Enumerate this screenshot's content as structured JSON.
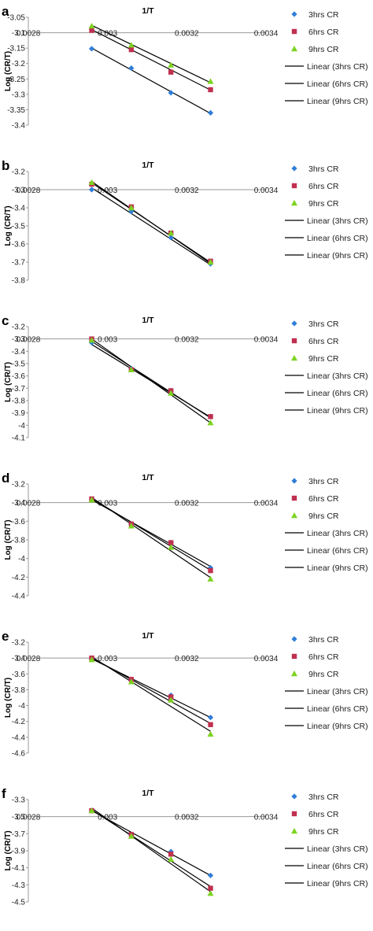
{
  "chart_data": [
    {
      "type": "scatter",
      "panel_label": "a",
      "title": "1/T",
      "ylabel": "Log (CR/T)",
      "xlim": [
        0.0028,
        0.0034
      ],
      "ylim": [
        -3.4,
        -3.05
      ],
      "x_ticks": [
        "0.0028",
        "0.003",
        "0.0032",
        "0.0034"
      ],
      "y_ticks": [
        "-3.05",
        "-3.1",
        "-3.15",
        "-3.2",
        "-3.25",
        "-3.3",
        "-3.35",
        "-3.4"
      ],
      "x": [
        0.00296,
        0.00306,
        0.00316,
        0.00326
      ],
      "series": [
        {
          "name": "3hrs CR",
          "values": [
            -3.152,
            -3.215,
            -3.295,
            -3.36
          ],
          "fit": [
            -3.15,
            -3.362
          ]
        },
        {
          "name": "6hrs CR",
          "values": [
            -3.092,
            -3.155,
            -3.228,
            -3.285
          ],
          "fit": [
            -3.09,
            -3.286
          ]
        },
        {
          "name": "9hrs CR",
          "values": [
            -3.078,
            -3.14,
            -3.205,
            -3.258
          ],
          "fit": [
            -3.076,
            -3.262
          ]
        }
      ],
      "legend_fit": [
        "Linear (3hrs CR)",
        "Linear (6hrs CR)",
        "Linear (9hrs CR)"
      ]
    },
    {
      "type": "scatter",
      "panel_label": "b",
      "title": "1/T",
      "ylabel": "Log (CR/T)",
      "xlim": [
        0.0028,
        0.0034
      ],
      "ylim": [
        -3.8,
        -3.2
      ],
      "x_ticks": [
        "0.0028",
        "0.003",
        "0.0032",
        "0.0034"
      ],
      "y_ticks": [
        "-3.2",
        "-3.3",
        "-3.4",
        "-3.5",
        "-3.6",
        "-3.7",
        "-3.8"
      ],
      "x": [
        0.00296,
        0.00306,
        0.00316,
        0.00326
      ],
      "series": [
        {
          "name": "3hrs CR",
          "values": [
            -3.3,
            -3.42,
            -3.565,
            -3.71
          ],
          "fit": [
            -3.29,
            -3.715
          ]
        },
        {
          "name": "6hrs CR",
          "values": [
            -3.27,
            -3.395,
            -3.54,
            -3.695
          ],
          "fit": [
            -3.262,
            -3.702
          ]
        },
        {
          "name": "9hrs CR",
          "values": [
            -3.26,
            -3.4,
            -3.54,
            -3.7
          ],
          "fit": [
            -3.255,
            -3.708
          ]
        }
      ],
      "legend_fit": [
        "Linear (3hrs CR)",
        "Linear (6hrs CR)",
        "Linear (9hrs CR)"
      ]
    },
    {
      "type": "scatter",
      "panel_label": "c",
      "title": "1/T",
      "ylabel": "Log (CR/T)",
      "xlim": [
        0.0028,
        0.0034
      ],
      "ylim": [
        -4.1,
        -3.2
      ],
      "x_ticks": [
        "0.0028",
        "0.003",
        "0.0032",
        "0.0034"
      ],
      "y_ticks": [
        "-3.2",
        "-3.3",
        "-3.4",
        "-3.5",
        "-3.6",
        "-3.7",
        "-3.8",
        "-3.9",
        "-4",
        "-4.1"
      ],
      "x": [
        0.00296,
        0.00306,
        0.00316,
        0.00326
      ],
      "series": [
        {
          "name": "3hrs CR",
          "values": [
            -3.33,
            -3.54,
            -3.72,
            -3.93
          ],
          "fit": [
            -3.345,
            -3.935
          ]
        },
        {
          "name": "6hrs CR",
          "values": [
            -3.3,
            -3.55,
            -3.72,
            -3.93
          ],
          "fit": [
            -3.32,
            -3.94
          ]
        },
        {
          "name": "9hrs CR",
          "values": [
            -3.31,
            -3.55,
            -3.74,
            -3.98
          ],
          "fit": [
            -3.3,
            -3.98
          ]
        }
      ],
      "legend_fit": [
        "Linear (3hrs CR)",
        "Linear (6hrs CR)",
        "Linear (9hrs CR)"
      ]
    },
    {
      "type": "scatter",
      "panel_label": "d",
      "title": "1/T",
      "ylabel": "Log (CR/T)",
      "xlim": [
        0.0028,
        0.0034
      ],
      "ylim": [
        -4.4,
        -3.2
      ],
      "x_ticks": [
        "0.0028",
        "0.003",
        "0.0032",
        "0.0034"
      ],
      "y_ticks": [
        "-3.2",
        "-3.4",
        "-3.6",
        "-3.8",
        "-4",
        "-4.2",
        "-4.4"
      ],
      "x": [
        0.00296,
        0.00306,
        0.00316,
        0.00326
      ],
      "series": [
        {
          "name": "3hrs CR",
          "values": [
            -3.37,
            -3.63,
            -3.83,
            -4.1
          ],
          "fit": [
            -3.37,
            -4.085
          ]
        },
        {
          "name": "6hrs CR",
          "values": [
            -3.36,
            -3.63,
            -3.83,
            -4.13
          ],
          "fit": [
            -3.355,
            -4.125
          ]
        },
        {
          "name": "9hrs CR",
          "values": [
            -3.37,
            -3.65,
            -3.88,
            -4.22
          ],
          "fit": [
            -3.345,
            -4.205
          ]
        }
      ],
      "legend_fit": [
        "Linear (3hrs CR)",
        "Linear (6hrs CR)",
        "Linear (9hrs CR)"
      ]
    },
    {
      "type": "scatter",
      "panel_label": "e",
      "title": "1/T",
      "ylabel": "Log (CR/T)",
      "xlim": [
        0.0028,
        0.0034
      ],
      "ylim": [
        -4.6,
        -3.2
      ],
      "x_ticks": [
        "0.0028",
        "0.003",
        "0.0032",
        "0.0034"
      ],
      "y_ticks": [
        "-3.2",
        "-3.4",
        "-3.6",
        "-3.8",
        "-4",
        "-4.2",
        "-4.4",
        "-4.6"
      ],
      "x": [
        0.00296,
        0.00306,
        0.00316,
        0.00326
      ],
      "series": [
        {
          "name": "3hrs CR",
          "values": [
            -3.41,
            -3.67,
            -3.87,
            -4.15
          ],
          "fit": [
            -3.41,
            -4.15
          ]
        },
        {
          "name": "6hrs CR",
          "values": [
            -3.4,
            -3.67,
            -3.89,
            -4.24
          ],
          "fit": [
            -3.395,
            -4.225
          ]
        },
        {
          "name": "9hrs CR",
          "values": [
            -3.42,
            -3.7,
            -3.93,
            -4.36
          ],
          "fit": [
            -3.385,
            -4.325
          ]
        }
      ],
      "legend_fit": [
        "Linear (3hrs CR)",
        "Linear (6hrs CR)",
        "Linear (9hrs CR)"
      ]
    },
    {
      "type": "scatter",
      "panel_label": "f",
      "title": "1/T",
      "ylabel": "Log (CR/T)",
      "xlim": [
        0.0028,
        0.0034
      ],
      "ylim": [
        -4.5,
        -3.3
      ],
      "x_ticks": [
        "0.0028",
        "0.003",
        "0.0032",
        "0.0034"
      ],
      "y_ticks": [
        "-3.3",
        "-3.5",
        "-3.7",
        "-3.9",
        "-4.1",
        "-4.3",
        "-4.5"
      ],
      "x": [
        0.00296,
        0.00306,
        0.00316,
        0.00326
      ],
      "series": [
        {
          "name": "3hrs CR",
          "values": [
            -3.43,
            -3.71,
            -3.91,
            -4.19
          ],
          "fit": [
            -3.43,
            -4.19
          ]
        },
        {
          "name": "6hrs CR",
          "values": [
            -3.43,
            -3.71,
            -3.94,
            -4.34
          ],
          "fit": [
            -3.42,
            -4.32
          ]
        },
        {
          "name": "9hrs CR",
          "values": [
            -3.43,
            -3.73,
            -4.0,
            -4.4
          ],
          "fit": [
            -3.4,
            -4.38
          ]
        }
      ],
      "legend_fit": [
        "Linear (3hrs CR)",
        "Linear (6hrs CR)",
        "Linear (9hrs CR)"
      ]
    }
  ],
  "series_colors": {
    "3hrs CR": "#2f7ed8",
    "6hrs CR": "#c0304f",
    "9hrs CR": "#7dd321"
  },
  "series_markers": {
    "3hrs CR": "diamond",
    "6hrs CR": "square",
    "9hrs CR": "triangle"
  },
  "trendline_color": "#000000",
  "axis_color": "#999999"
}
